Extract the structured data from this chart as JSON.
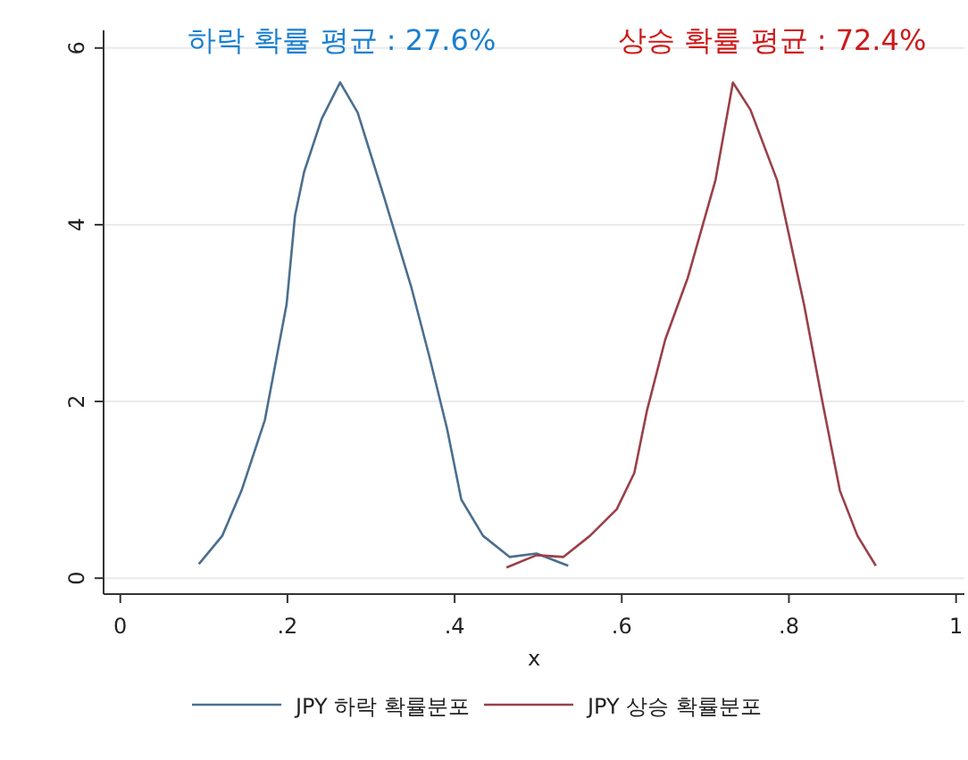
{
  "chart_data": {
    "type": "line",
    "xlabel": "x",
    "annotations": [
      "하락 확률 평균 : 27.6%",
      "상승 확률 평균 : 72.4%"
    ],
    "xlim": [
      -0.02,
      1.01
    ],
    "ylim": [
      -0.18,
      6.2
    ],
    "xticks": [
      0,
      {
        "value": 0.2,
        "label": ".2"
      },
      {
        "value": 0.4,
        "label": ".4"
      },
      {
        "value": 0.6,
        "label": ".6"
      },
      {
        "value": 0.8,
        "label": ".8"
      },
      1
    ],
    "yticks": [
      0,
      2,
      4,
      6
    ],
    "grid": "y",
    "legend": "bottom",
    "series": [
      {
        "name": "JPY 하락 확률분포",
        "color": "#4a6f8f",
        "x": [
          0.094,
          0.122,
          0.145,
          0.173,
          0.199,
          0.209,
          0.22,
          0.241,
          0.263,
          0.284,
          0.316,
          0.348,
          0.37,
          0.391,
          0.408,
          0.434,
          0.466,
          0.498,
          0.536
        ],
        "values": [
          0.16,
          0.48,
          0.99,
          1.79,
          3.1,
          4.1,
          4.6,
          5.2,
          5.61,
          5.27,
          4.3,
          3.3,
          2.5,
          1.69,
          0.89,
          0.48,
          0.24,
          0.28,
          0.14
        ]
      },
      {
        "name": "JPY 상승 확률분포",
        "color": "#9a4048",
        "x": [
          0.462,
          0.498,
          0.53,
          0.562,
          0.594,
          0.615,
          0.63,
          0.652,
          0.679,
          0.712,
          0.733,
          0.754,
          0.786,
          0.818,
          0.84,
          0.861,
          0.882,
          0.904
        ],
        "values": [
          0.12,
          0.26,
          0.24,
          0.48,
          0.78,
          1.19,
          1.89,
          2.7,
          3.4,
          4.5,
          5.61,
          5.3,
          4.5,
          3.1,
          2.0,
          0.99,
          0.48,
          0.14
        ]
      }
    ]
  }
}
